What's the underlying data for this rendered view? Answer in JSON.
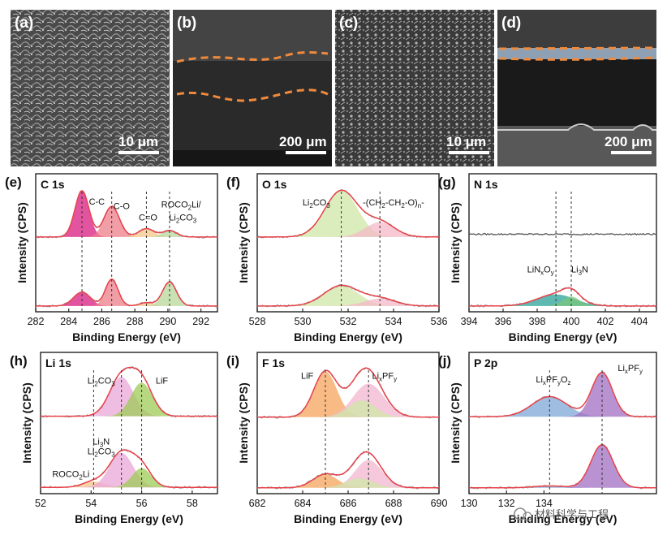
{
  "figure": {
    "sem_panels": [
      {
        "label": "(a)",
        "scale_bar": "10 μm",
        "view": "top",
        "dashed_lines": 0
      },
      {
        "label": "(b)",
        "scale_bar": "200 μm",
        "view": "cross-section",
        "dashed_lines": 2
      },
      {
        "label": "(c)",
        "scale_bar": "10 μm",
        "view": "top",
        "dashed_lines": 0
      },
      {
        "label": "(d)",
        "scale_bar": "200 μm",
        "view": "cross-section",
        "dashed_lines": 2
      }
    ],
    "watermark": "材料科学与工程",
    "colors": {
      "c_cc": "#d81b7f",
      "c_co": "#ee7e8a",
      "c_ceo": "#f7c58a",
      "c_roco": "#b8d79a",
      "o_li2co3": "#cfe7a6",
      "o_peo": "#f4b8c8",
      "n_linxoy": "#2aa198",
      "n_li3n": "#7ac77a",
      "li_li2co3": "#e9a6d8",
      "li_lif": "#9ecb55",
      "li_roco2li": "#f6c48a",
      "f_lif": "#f5a45c",
      "f_lixpfy": "#f2b7cf",
      "f_green": "#cfe7a6",
      "p_lixpfyoz": "#7fa7d6",
      "p_lixpfy": "#a16fc1",
      "envelope": "#e8424a",
      "raw": "#999999",
      "dashed_sem": "#f08a3c"
    }
  },
  "chart_data": [
    {
      "panel": "(e)",
      "type": "line",
      "title": "C 1s",
      "xlabel": "Binding Energy (eV)",
      "ylabel": "Intensity (CPS)",
      "xlim": [
        282,
        293
      ],
      "xticks": [
        "282",
        "284",
        "286",
        "288",
        "290",
        "292"
      ],
      "reverse_x": false,
      "annotations": [
        {
          "text": "C-C",
          "x": 285.7,
          "row": "top",
          "level": 0.72
        },
        {
          "text": "C-O",
          "x": 287.2,
          "row": "top",
          "level": 0.62
        },
        {
          "text": "C=O",
          "x": 288.8,
          "row": "top",
          "level": 0.38
        },
        {
          "text": "ROCO",
          "sub": "2",
          "tail": "Li/",
          "x": 290.8,
          "row": "top",
          "level": 0.66
        },
        {
          "text": "Li",
          "sub": "2",
          "tail": "CO",
          "sub2": "3",
          "x": 290.9,
          "row": "top",
          "level": 0.38
        }
      ],
      "vlines": [
        284.8,
        286.6,
        288.7,
        290.1
      ],
      "series": [
        {
          "name": "top",
          "baseline": 0.02,
          "peaks": [
            {
              "name": "C-C",
              "center": 284.8,
              "amp": 1.0,
              "fwhm": 1.0,
              "color": "c_cc"
            },
            {
              "name": "C-O",
              "center": 286.6,
              "amp": 0.66,
              "fwhm": 1.1,
              "color": "c_co"
            },
            {
              "name": "C=O",
              "center": 288.7,
              "amp": 0.18,
              "fwhm": 1.1,
              "color": "c_ceo"
            },
            {
              "name": "ROCO2Li/Li2CO3",
              "center": 290.1,
              "amp": 0.14,
              "fwhm": 1.0,
              "color": "c_roco"
            }
          ]
        },
        {
          "name": "bottom",
          "baseline": 0.02,
          "peaks": [
            {
              "name": "C-C",
              "center": 284.8,
              "amp": 0.3,
              "fwhm": 1.2,
              "color": "c_cc"
            },
            {
              "name": "C-O",
              "center": 286.6,
              "amp": 0.58,
              "fwhm": 0.9,
              "color": "c_co"
            },
            {
              "name": "C=O",
              "center": 288.7,
              "amp": 0.07,
              "fwhm": 1.0,
              "color": "c_ceo"
            },
            {
              "name": "ROCO2Li/Li2CO3",
              "center": 290.1,
              "amp": 0.52,
              "fwhm": 1.0,
              "color": "c_roco"
            }
          ]
        }
      ]
    },
    {
      "panel": "(f)",
      "type": "line",
      "title": "O 1s",
      "xlabel": "Binding Energy (eV)",
      "ylabel": "Intensity (CPS)",
      "xlim": [
        528,
        536
      ],
      "xticks": [
        "528",
        "530",
        "532",
        "534",
        "536"
      ],
      "reverse_x": false,
      "annotations": [
        {
          "text": "Li",
          "sub": "2",
          "tail": "CO",
          "sub2": "3",
          "x": 530.6,
          "row": "top",
          "level": 0.7
        },
        {
          "text": "-(CH",
          "sub": "2",
          "tail": "-CH",
          "sub2": "2",
          "tail2": "-O)",
          "sub3": "n",
          "tail3": "-",
          "x": 534.0,
          "row": "top",
          "level": 0.7
        }
      ],
      "vlines": [
        531.7,
        533.4
      ],
      "series": [
        {
          "name": "top",
          "baseline": 0.02,
          "peaks": [
            {
              "name": "Li2CO3",
              "center": 531.7,
              "amp": 1.0,
              "fwhm": 1.7,
              "color": "o_li2co3"
            },
            {
              "name": "PEO",
              "center": 533.4,
              "amp": 0.32,
              "fwhm": 1.5,
              "color": "o_peo"
            }
          ]
        },
        {
          "name": "bottom",
          "baseline": 0.02,
          "peaks": [
            {
              "name": "Li2CO3",
              "center": 531.7,
              "amp": 0.44,
              "fwhm": 1.8,
              "color": "o_li2co3"
            },
            {
              "name": "PEO",
              "center": 533.4,
              "amp": 0.16,
              "fwhm": 1.6,
              "color": "o_peo"
            }
          ]
        }
      ]
    },
    {
      "panel": "(g)",
      "type": "line",
      "title": "N 1s",
      "xlabel": "Binding Energy (eV)",
      "ylabel": "Intensity (CPS)",
      "xlim": [
        394,
        405
      ],
      "xticks": [
        "394",
        "396",
        "398",
        "400",
        "402",
        "404"
      ],
      "reverse_x": false,
      "annotations": [
        {
          "text": "LiN",
          "sub": "x",
          "tail": "O",
          "sub2": "y",
          "x": 398.2,
          "row": "bottom",
          "level": 0.75
        },
        {
          "text": "Li",
          "sub": "3",
          "tail": "N",
          "x": 400.5,
          "row": "bottom",
          "level": 0.75
        }
      ],
      "vlines": [
        399.1,
        400.0
      ],
      "series": [
        {
          "name": "top",
          "baseline": 0.08,
          "flat": true,
          "peaks": []
        },
        {
          "name": "bottom",
          "baseline": 0.02,
          "peaks": [
            {
              "name": "LiNxOy",
              "center": 399.1,
              "amp": 0.25,
              "fwhm": 2.6,
              "color": "n_linxoy"
            },
            {
              "name": "Li3N",
              "center": 400.0,
              "amp": 0.2,
              "fwhm": 1.2,
              "color": "n_li3n"
            }
          ]
        }
      ]
    },
    {
      "panel": "(h)",
      "type": "line",
      "title": "Li 1s",
      "xlabel": "Binding Energy (eV)",
      "ylabel": "Intensity (CPS)",
      "xlim": [
        52,
        59
      ],
      "xticks": [
        "52",
        "54",
        "56",
        "58"
      ],
      "reverse_x": false,
      "annotations": [
        {
          "text": "Li",
          "sub": "2",
          "tail": "CO",
          "sub2": "3",
          "x": 54.4,
          "row": "top",
          "level": 0.72
        },
        {
          "text": "LiF",
          "x": 56.8,
          "row": "top",
          "level": 0.72
        },
        {
          "text": "Li",
          "sub": "3",
          "tail": "N",
          "x": 54.4,
          "row": "bottom",
          "level": 0.92
        },
        {
          "text": "Li",
          "sub": "2",
          "tail": "CO",
          "sub2": "3",
          "x": 54.4,
          "row": "bottom",
          "level": 0.72
        },
        {
          "text": "ROCO",
          "sub": "2",
          "tail": "Li",
          "x": 53.2,
          "row": "bottom",
          "level": 0.25
        }
      ],
      "vlines": [
        55.2,
        56.0,
        54.1
      ],
      "series": [
        {
          "name": "top",
          "baseline": 0.04,
          "peaks": [
            {
              "name": "Li2CO3",
              "center": 55.2,
              "amp": 0.82,
              "fwhm": 1.1,
              "color": "li_li2co3"
            },
            {
              "name": "LiF",
              "center": 56.0,
              "amp": 0.7,
              "fwhm": 1.0,
              "color": "li_lif"
            }
          ]
        },
        {
          "name": "bottom",
          "baseline": 0.03,
          "peaks": [
            {
              "name": "ROCO2Li",
              "center": 54.1,
              "amp": 0.12,
              "fwhm": 1.0,
              "color": "li_roco2li"
            },
            {
              "name": "Li3N/Li2CO3",
              "center": 55.2,
              "amp": 0.72,
              "fwhm": 1.1,
              "color": "li_li2co3"
            },
            {
              "name": "LiF",
              "center": 56.0,
              "amp": 0.4,
              "fwhm": 0.9,
              "color": "li_lif"
            }
          ]
        }
      ]
    },
    {
      "panel": "(i)",
      "type": "line",
      "title": "F 1s",
      "xlabel": "Binding Energy (eV)",
      "ylabel": "Intensity (CPS)",
      "xlim": [
        682,
        690
      ],
      "xticks": [
        "682",
        "684",
        "686",
        "688",
        "690"
      ],
      "reverse_x": false,
      "annotations": [
        {
          "text": "LiF",
          "x": 684.2,
          "row": "top",
          "level": 0.82
        },
        {
          "text": "Li",
          "sub": "x",
          "tail": "PF",
          "sub2": "y",
          "x": 687.6,
          "row": "top",
          "level": 0.82
        }
      ],
      "vlines": [
        685.0,
        686.9
      ],
      "series": [
        {
          "name": "top",
          "baseline": 0.02,
          "peaks": [
            {
              "name": "LiF",
              "center": 685.0,
              "amp": 0.95,
              "fwhm": 1.2,
              "color": "f_lif"
            },
            {
              "name": "LixPFy",
              "center": 686.9,
              "amp": 0.7,
              "fwhm": 1.6,
              "color": "f_lixpfy"
            },
            {
              "name": "green",
              "center": 686.6,
              "amp": 0.35,
              "fwhm": 1.4,
              "color": "f_green"
            }
          ]
        },
        {
          "name": "bottom",
          "baseline": 0.02,
          "peaks": [
            {
              "name": "LiF",
              "center": 685.0,
              "amp": 0.28,
              "fwhm": 1.3,
              "color": "f_lif"
            },
            {
              "name": "LixPFy",
              "center": 686.9,
              "amp": 0.58,
              "fwhm": 1.4,
              "color": "f_lixpfy"
            },
            {
              "name": "green",
              "center": 686.5,
              "amp": 0.2,
              "fwhm": 1.4,
              "color": "f_green"
            }
          ]
        }
      ]
    },
    {
      "panel": "(j)",
      "type": "line",
      "title": "P 2p",
      "xlabel": "Binding Energy (eV)",
      "ylabel": "Intensity (CPS)",
      "xlim": [
        130,
        140
      ],
      "xticks": [
        "130",
        "132",
        "134"
      ],
      "reverse_x": false,
      "annotations": [
        {
          "text": "Li",
          "sub": "x",
          "tail": "PF",
          "sub2": "y",
          "tail2": "O",
          "sub3": "z",
          "x": 134.5,
          "row": "top",
          "level": 0.75
        },
        {
          "text": "Li",
          "sub": "x",
          "tail": "PF",
          "sub2": "y",
          "x": 138.6,
          "row": "top",
          "level": 0.98
        }
      ],
      "vlines": [
        134.3,
        137.1
      ],
      "series": [
        {
          "name": "top",
          "baseline": 0.03,
          "peaks": [
            {
              "name": "LixPFyOz",
              "center": 134.3,
              "amp": 0.42,
              "fwhm": 2.2,
              "color": "p_lixpfyoz"
            },
            {
              "name": "LixPFy",
              "center": 137.1,
              "amp": 0.92,
              "fwhm": 1.3,
              "color": "p_lixpfy"
            }
          ]
        },
        {
          "name": "bottom",
          "baseline": 0.02,
          "peaks": [
            {
              "name": "LixPFyOz",
              "center": 134.3,
              "amp": 0.04,
              "fwhm": 2.0,
              "color": "p_lixpfyoz"
            },
            {
              "name": "LixPFy",
              "center": 137.1,
              "amp": 0.9,
              "fwhm": 1.4,
              "color": "p_lixpfy"
            }
          ]
        }
      ]
    }
  ]
}
